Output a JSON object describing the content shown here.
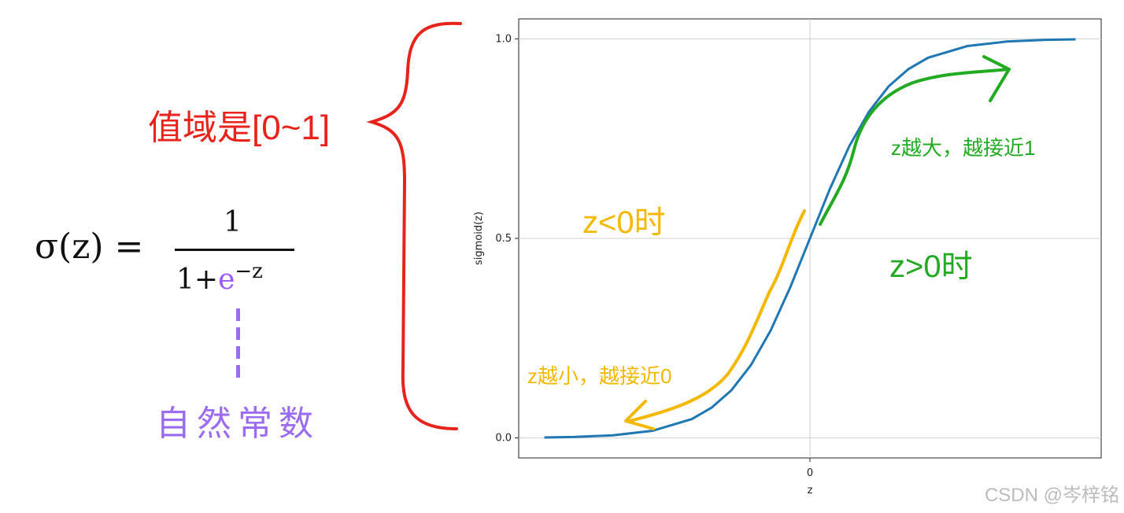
{
  "formula": {
    "lhs": "σ(z) = ",
    "numerator": "1",
    "denominator_prefix": "1+",
    "denominator_e": "e",
    "denominator_exponent": "−z",
    "euler_label": "自然常数",
    "euler_color": "#9b6cf0"
  },
  "range_label": "值域是[0~1]",
  "range_color": "#e8231c",
  "annotations": {
    "z_lt_0": "z<0时",
    "z_gt_0": "z>0时",
    "z_smaller": "z越小，越接近0",
    "z_larger": "z越大，越接近1",
    "orange_color": "#f5b800",
    "green_color": "#22aa22"
  },
  "chart_data": {
    "type": "line",
    "title": "",
    "xlabel": "z",
    "ylabel": "sigmoid(z)",
    "xlim": [
      -7.4,
      7.4
    ],
    "ylim": [
      -0.05,
      1.05
    ],
    "xticks": [
      0
    ],
    "xtick_labels": [
      "0"
    ],
    "yticks": [
      0.0,
      0.5,
      1.0
    ],
    "ytick_labels": [
      "0.0",
      "0.5",
      "1.0"
    ],
    "grid": true,
    "line_color": "#1f77b4",
    "series": [
      {
        "x": [
          -6.75,
          -6,
          -5,
          -4,
          -3,
          -2.5,
          -2,
          -1.5,
          -1,
          -0.5,
          0,
          0.5,
          1,
          1.5,
          2,
          2.5,
          3,
          4,
          5,
          6,
          6.75
        ],
        "y": [
          0.0012,
          0.0025,
          0.0067,
          0.018,
          0.0474,
          0.0759,
          0.1192,
          0.1824,
          0.2689,
          0.3775,
          0.5,
          0.6225,
          0.7311,
          0.8176,
          0.8808,
          0.9241,
          0.9526,
          0.982,
          0.9933,
          0.9975,
          0.9988
        ]
      }
    ]
  },
  "watermark": "CSDN @岑梓铭"
}
